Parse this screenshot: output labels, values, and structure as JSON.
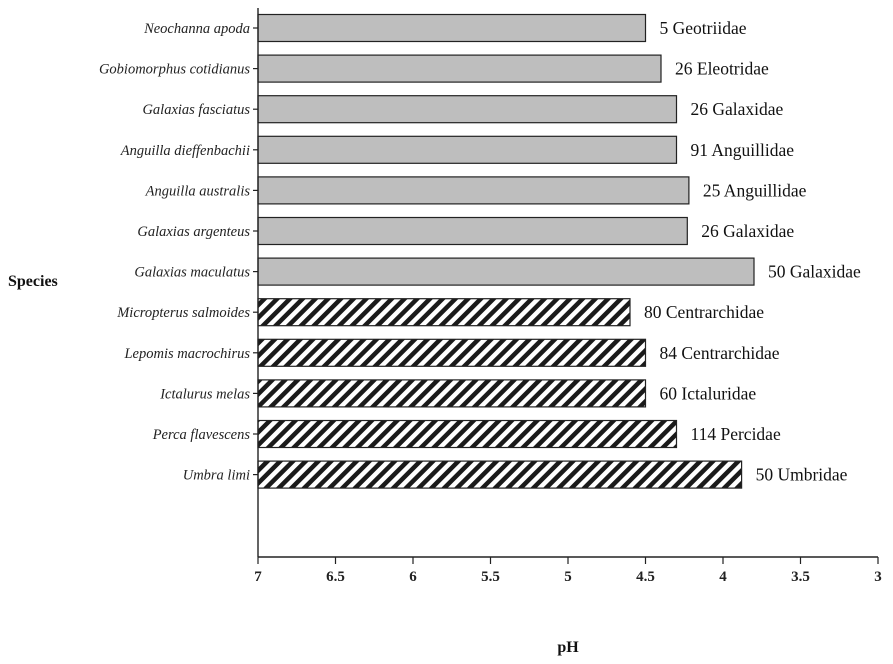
{
  "chart_data": {
    "type": "bar",
    "orientation": "horizontal",
    "xlabel": "pH",
    "ylabel": "Species",
    "xlim": [
      7,
      3
    ],
    "x_reversed": true,
    "xticks": [
      "7",
      "6.5",
      "6",
      "5.5",
      "5",
      "4.5",
      "4",
      "3.5",
      "3"
    ],
    "grid": false,
    "colors": {
      "solid": "#bebebe",
      "hatch": "#1a1a1a",
      "edge": "#222222"
    },
    "bars": [
      {
        "species": "Neochanna apoda",
        "value": 4.5,
        "label": "5 Geotriidae",
        "style": "solid"
      },
      {
        "species": "Gobiomorphus cotidianus",
        "value": 4.4,
        "label": "26 Eleotridae",
        "style": "solid"
      },
      {
        "species": "Galaxias fasciatus",
        "value": 4.3,
        "label": "26 Galaxidae",
        "style": "solid"
      },
      {
        "species": "Anguilla dieffenbachii",
        "value": 4.3,
        "label": "91 Anguillidae",
        "style": "solid"
      },
      {
        "species": "Anguilla australis",
        "value": 4.22,
        "label": "25 Anguillidae",
        "style": "solid"
      },
      {
        "species": "Galaxias argenteus",
        "value": 4.23,
        "label": "26 Galaxidae",
        "style": "solid"
      },
      {
        "species": "Galaxias maculatus",
        "value": 3.8,
        "label": "50 Galaxidae",
        "style": "solid"
      },
      {
        "species": "Micropterus salmoides",
        "value": 4.6,
        "label": "80 Centrarchidae",
        "style": "hatch"
      },
      {
        "species": "Lepomis macrochirus",
        "value": 4.5,
        "label": "84 Centrarchidae",
        "style": "hatch"
      },
      {
        "species": "Ictalurus melas",
        "value": 4.5,
        "label": "60 Ictaluridae",
        "style": "hatch"
      },
      {
        "species": "Perca flavescens",
        "value": 4.3,
        "label": "114 Percidae",
        "style": "hatch"
      },
      {
        "species": "Umbra limi",
        "value": 3.88,
        "label": "50 Umbridae",
        "style": "hatch"
      }
    ]
  }
}
